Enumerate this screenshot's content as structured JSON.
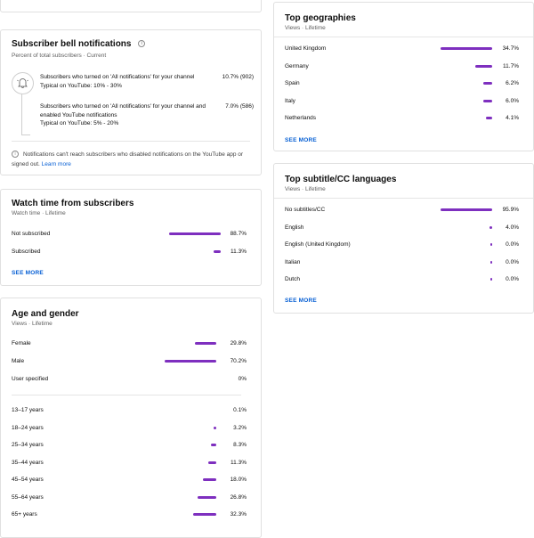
{
  "bell": {
    "title": "Subscriber bell notifications",
    "subtitle": "Percent of total subscribers · Current",
    "rows": [
      {
        "text": "Subscribers who turned on 'All notifications' for your channel",
        "typical": "Typical on YouTube: 10% - 30%",
        "value": "10.7% (902)"
      },
      {
        "text": "Subscribers who turned on 'All notifications' for your channel and enabled YouTube notifications",
        "typical": "Typical on YouTube: 5% - 20%",
        "value": "7.0% (586)"
      }
    ],
    "footer_note": "Notifications can't reach subscribers who disabled notifications on the YouTube app or signed out.",
    "learn_more": "Learn more"
  },
  "watch_time": {
    "title": "Watch time from subscribers",
    "subtitle": "Watch time · Lifetime",
    "rows": [
      {
        "label": "Not subscribed",
        "value": "88.7%",
        "fraction": 0.887
      },
      {
        "label": "Subscribed",
        "value": "11.3%",
        "fraction": 0.113
      }
    ],
    "see_more": "SEE MORE"
  },
  "age_gender": {
    "title": "Age and gender",
    "subtitle": "Views · Lifetime",
    "gender": [
      {
        "label": "Female",
        "value": "29.8%",
        "fraction": 0.298
      },
      {
        "label": "Male",
        "value": "70.2%",
        "fraction": 0.702
      },
      {
        "label": "User specified",
        "value": "0%",
        "fraction": 0
      }
    ],
    "ages": [
      {
        "label": "13–17 years",
        "value": "0.1%",
        "fraction": 0.001
      },
      {
        "label": "18–24 years",
        "value": "3.2%",
        "fraction": 0.032
      },
      {
        "label": "25–34 years",
        "value": "8.3%",
        "fraction": 0.083
      },
      {
        "label": "35–44 years",
        "value": "11.3%",
        "fraction": 0.113
      },
      {
        "label": "45–54 years",
        "value": "18.0%",
        "fraction": 0.18
      },
      {
        "label": "55–64 years",
        "value": "26.8%",
        "fraction": 0.268
      },
      {
        "label": "65+ years",
        "value": "32.3%",
        "fraction": 0.323
      }
    ]
  },
  "geographies": {
    "title": "Top geographies",
    "subtitle": "Views · Lifetime",
    "rows": [
      {
        "label": "United Kingdom",
        "value": "34.7%",
        "fraction": 0.347
      },
      {
        "label": "Germany",
        "value": "11.7%",
        "fraction": 0.117
      },
      {
        "label": "Spain",
        "value": "6.2%",
        "fraction": 0.062
      },
      {
        "label": "Italy",
        "value": "6.0%",
        "fraction": 0.06
      },
      {
        "label": "Netherlands",
        "value": "4.1%",
        "fraction": 0.041
      }
    ],
    "see_more": "SEE MORE"
  },
  "subtitles": {
    "title": "Top subtitle/CC languages",
    "subtitle": "Views · Lifetime",
    "rows": [
      {
        "label": "No subtitles/CC",
        "value": "95.9%",
        "fraction": 0.959
      },
      {
        "label": "English",
        "value": "4.0%",
        "fraction": 0.04
      },
      {
        "label": "English (United Kingdom)",
        "value": "0.0%",
        "fraction": 0
      },
      {
        "label": "Italian",
        "value": "0.0%",
        "fraction": 0
      },
      {
        "label": "Dutch",
        "value": "0.0%",
        "fraction": 0
      }
    ],
    "see_more": "SEE MORE"
  },
  "colors": {
    "bar": "#7e2fbf",
    "link": "#065fd4"
  },
  "icons": {
    "bell": "bell-icon",
    "info": "info-icon"
  }
}
